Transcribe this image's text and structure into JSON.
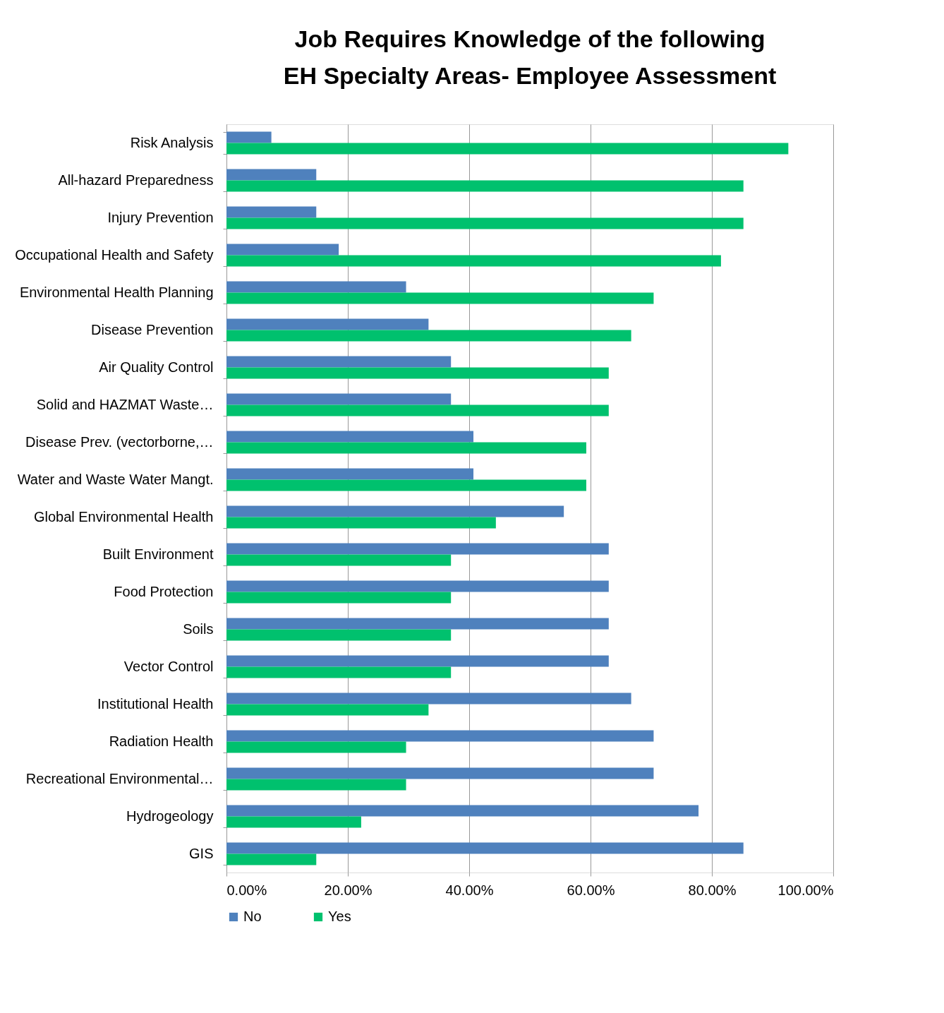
{
  "chart_data": {
    "type": "bar",
    "orientation": "horizontal",
    "title": [
      "Job Requires Knowledge of the following",
      "EH Specialty Areas- Employee Assessment"
    ],
    "categories": [
      "Risk Analysis",
      "All-hazard Preparedness",
      "Injury Prevention",
      "Occupational Health and Safety",
      "Environmental Health Planning",
      "Disease Prevention",
      "Air Quality Control",
      "Solid and HAZMAT Waste…",
      "Disease Prev. (vectorborne,…",
      "Water and Waste Water Mangt.",
      "Global Environmental Health",
      "Built Environment",
      "Food Protection",
      "Soils",
      "Vector Control",
      "Institutional Health",
      "Radiation Health",
      "Recreational Environmental…",
      "Hydrogeology",
      "GIS"
    ],
    "series": [
      {
        "name": "No",
        "color": "#4f81bd",
        "values": [
          7.4,
          14.8,
          14.8,
          18.5,
          29.6,
          33.3,
          37.0,
          37.0,
          40.7,
          40.7,
          55.6,
          63.0,
          63.0,
          63.0,
          63.0,
          66.7,
          70.4,
          70.4,
          77.8,
          85.2
        ]
      },
      {
        "name": "Yes",
        "color": "#00c16e",
        "values": [
          92.6,
          85.2,
          85.2,
          81.5,
          70.4,
          66.7,
          63.0,
          63.0,
          59.3,
          59.3,
          44.4,
          37.0,
          37.0,
          37.0,
          37.0,
          33.3,
          29.6,
          29.6,
          22.2,
          14.8
        ]
      }
    ],
    "xlim": [
      0,
      100
    ],
    "xticks": [
      {
        "value": 0,
        "label": "0.00%"
      },
      {
        "value": 20,
        "label": "20.00%"
      },
      {
        "value": 40,
        "label": "40.00%"
      },
      {
        "value": 60,
        "label": "60.00%"
      },
      {
        "value": 80,
        "label": "80.00%"
      },
      {
        "value": 100,
        "label": "100.00%"
      }
    ],
    "grid": "x",
    "legend": "bottom"
  }
}
